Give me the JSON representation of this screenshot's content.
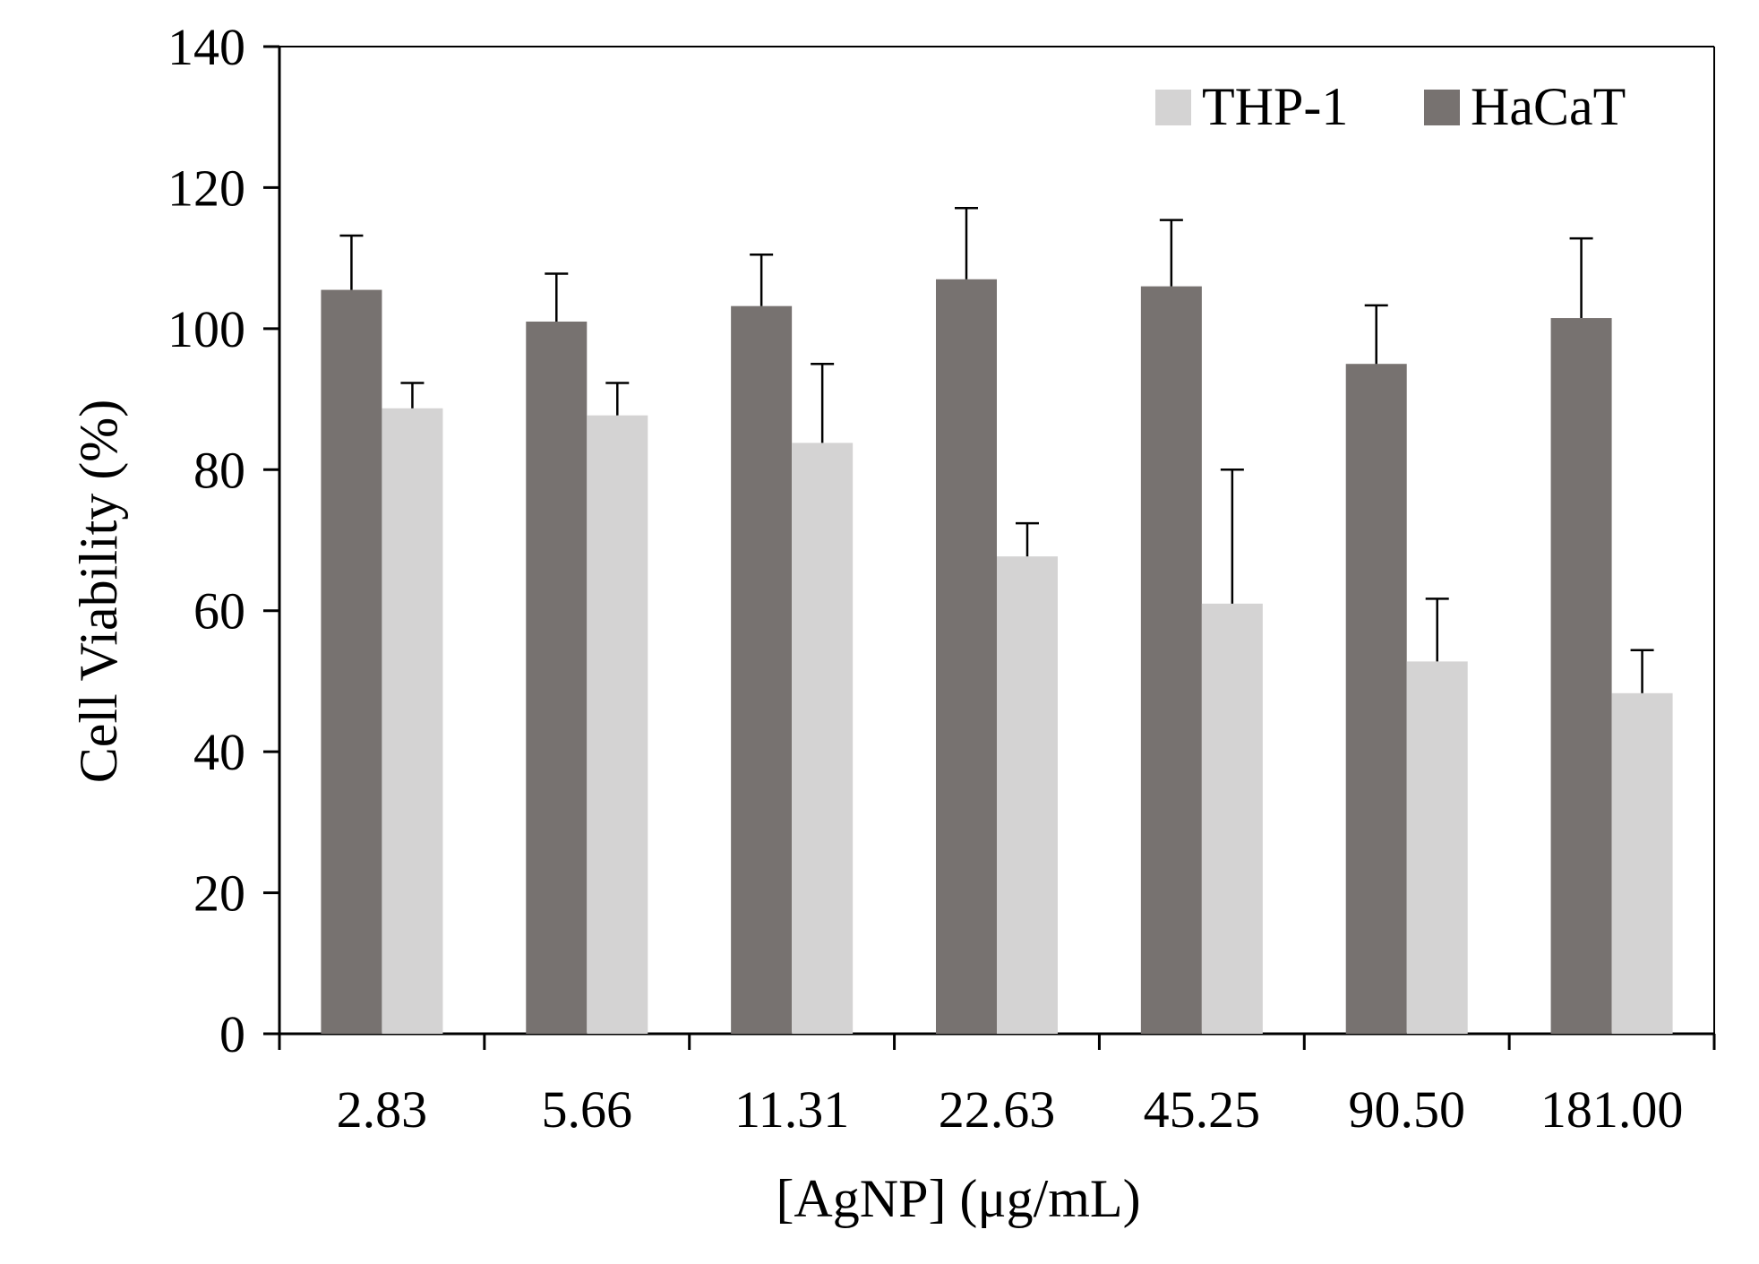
{
  "chart_data": {
    "type": "bar",
    "title": "",
    "xlabel": "[AgNP] (μg/mL)",
    "ylabel": "Cell Viability (%)",
    "ylim": [
      0,
      140
    ],
    "yticks": [
      0,
      20,
      40,
      60,
      80,
      100,
      120,
      140
    ],
    "ytick_labels": [
      "0",
      "20",
      "40",
      "60",
      "80",
      "100",
      "120",
      "140"
    ],
    "categories": [
      "2.83",
      "5.66",
      "11.31",
      "22.63",
      "45.25",
      "90.50",
      "181.00"
    ],
    "grid": false,
    "legend_position": "top-right",
    "series": [
      {
        "name": "HaCaT",
        "color": "#777270",
        "values": [
          105.5,
          101,
          103.2,
          107,
          106,
          95,
          101.5
        ],
        "errors": [
          7.7,
          6.8,
          7.3,
          10.1,
          9.4,
          8.3,
          11.3
        ]
      },
      {
        "name": "THP-1",
        "color": "#d4d3d3",
        "values": [
          88.7,
          87.7,
          83.8,
          67.7,
          61,
          52.8,
          48.3
        ],
        "errors": [
          3.6,
          4.6,
          11.2,
          4.7,
          19,
          8.9,
          6.1
        ]
      }
    ],
    "legend_order": [
      "THP-1",
      "HaCaT"
    ]
  }
}
